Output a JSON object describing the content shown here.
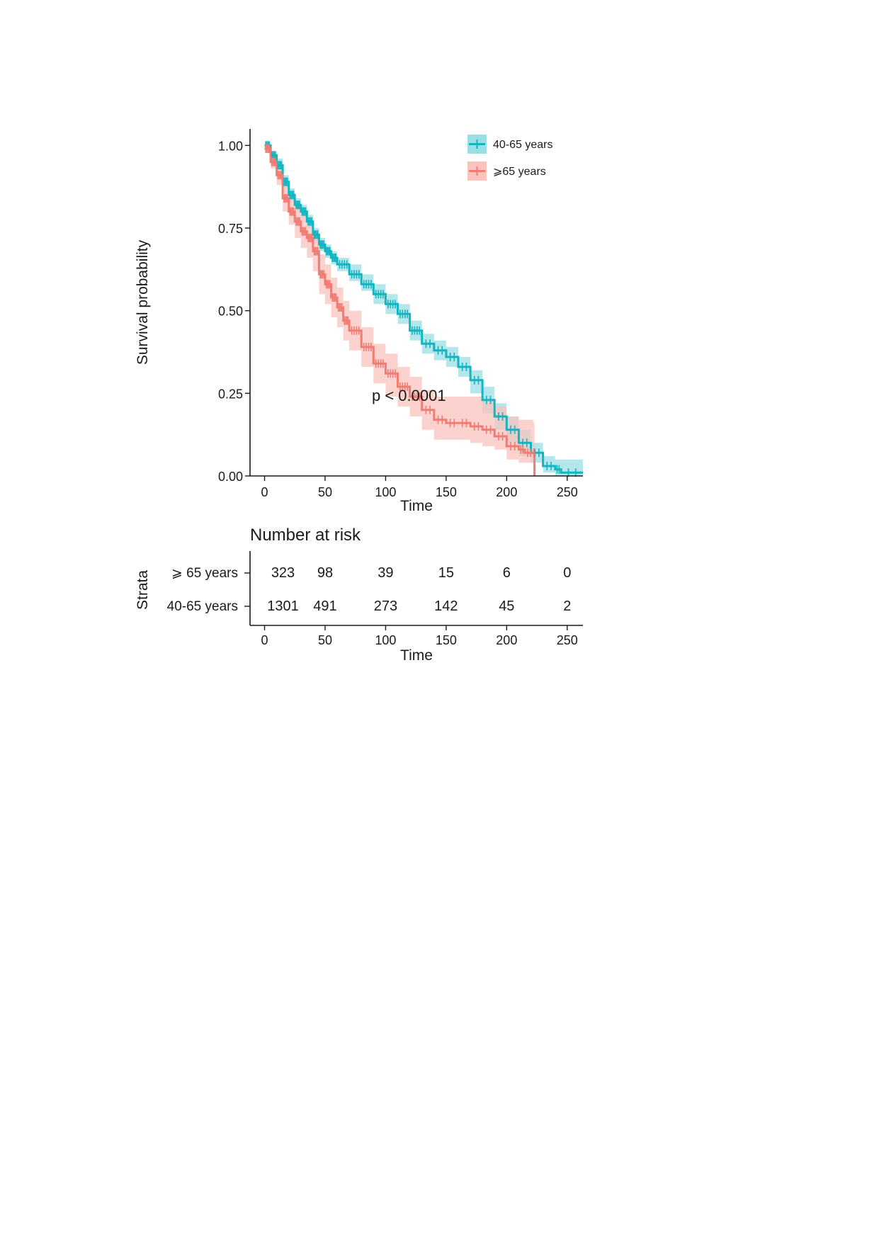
{
  "chart_data": {
    "type": "kaplan-meier",
    "xlabel": "Time",
    "ylabel": "Survival probability",
    "xlim": [
      -12,
      263
    ],
    "ylim": [
      0,
      1.05
    ],
    "x_ticks": [
      "0",
      "50",
      "100",
      "150",
      "200",
      "250"
    ],
    "x_tick_values": [
      0,
      50,
      100,
      150,
      200,
      250
    ],
    "y_ticks": [
      "0.00",
      "0.25",
      "0.50",
      "0.75",
      "1.00"
    ],
    "y_tick_values": [
      0,
      0.25,
      0.5,
      0.75,
      1.0
    ],
    "pvalue_text": "p < 0.0001",
    "legend_position": "top-right",
    "series": [
      {
        "name": "40-65 years",
        "color": "#12B5C0",
        "ci_color": "#9ADFE4",
        "points": [
          [
            0,
            1.0
          ],
          [
            5,
            0.97
          ],
          [
            10,
            0.94
          ],
          [
            15,
            0.89
          ],
          [
            20,
            0.85
          ],
          [
            25,
            0.82
          ],
          [
            30,
            0.8
          ],
          [
            35,
            0.77
          ],
          [
            40,
            0.73
          ],
          [
            45,
            0.7
          ],
          [
            50,
            0.68
          ],
          [
            55,
            0.66
          ],
          [
            60,
            0.64
          ],
          [
            70,
            0.61
          ],
          [
            80,
            0.58
          ],
          [
            90,
            0.55
          ],
          [
            100,
            0.52
          ],
          [
            110,
            0.49
          ],
          [
            120,
            0.44
          ],
          [
            130,
            0.4
          ],
          [
            140,
            0.38
          ],
          [
            150,
            0.36
          ],
          [
            160,
            0.33
          ],
          [
            170,
            0.29
          ],
          [
            180,
            0.23
          ],
          [
            190,
            0.18
          ],
          [
            200,
            0.14
          ],
          [
            210,
            0.1
          ],
          [
            220,
            0.07
          ],
          [
            230,
            0.03
          ],
          [
            240,
            0.02
          ],
          [
            245,
            0.01
          ],
          [
            263,
            0.01
          ]
        ],
        "ci_lower": [
          [
            0,
            1.0
          ],
          [
            5,
            0.96
          ],
          [
            10,
            0.93
          ],
          [
            15,
            0.87
          ],
          [
            20,
            0.83
          ],
          [
            25,
            0.8
          ],
          [
            30,
            0.78
          ],
          [
            35,
            0.75
          ],
          [
            40,
            0.71
          ],
          [
            45,
            0.68
          ],
          [
            50,
            0.66
          ],
          [
            55,
            0.64
          ],
          [
            60,
            0.62
          ],
          [
            70,
            0.59
          ],
          [
            80,
            0.56
          ],
          [
            90,
            0.52
          ],
          [
            100,
            0.49
          ],
          [
            110,
            0.46
          ],
          [
            120,
            0.41
          ],
          [
            130,
            0.37
          ],
          [
            140,
            0.35
          ],
          [
            150,
            0.33
          ],
          [
            160,
            0.3
          ],
          [
            170,
            0.25
          ],
          [
            180,
            0.19
          ],
          [
            190,
            0.14
          ],
          [
            200,
            0.1
          ],
          [
            210,
            0.06
          ],
          [
            220,
            0.04
          ],
          [
            230,
            0.01
          ],
          [
            240,
            0.0
          ],
          [
            263,
            0.0
          ]
        ],
        "ci_upper": [
          [
            0,
            1.0
          ],
          [
            5,
            0.98
          ],
          [
            10,
            0.96
          ],
          [
            15,
            0.91
          ],
          [
            20,
            0.87
          ],
          [
            25,
            0.84
          ],
          [
            30,
            0.82
          ],
          [
            35,
            0.79
          ],
          [
            40,
            0.75
          ],
          [
            45,
            0.72
          ],
          [
            50,
            0.7
          ],
          [
            55,
            0.68
          ],
          [
            60,
            0.66
          ],
          [
            70,
            0.64
          ],
          [
            80,
            0.61
          ],
          [
            90,
            0.58
          ],
          [
            100,
            0.55
          ],
          [
            110,
            0.52
          ],
          [
            120,
            0.47
          ],
          [
            130,
            0.43
          ],
          [
            140,
            0.41
          ],
          [
            150,
            0.39
          ],
          [
            160,
            0.36
          ],
          [
            170,
            0.32
          ],
          [
            180,
            0.27
          ],
          [
            190,
            0.22
          ],
          [
            200,
            0.18
          ],
          [
            210,
            0.14
          ],
          [
            220,
            0.1
          ],
          [
            230,
            0.06
          ],
          [
            240,
            0.05
          ],
          [
            263,
            0.04
          ]
        ],
        "risk_numbers": [
          "1301",
          "491",
          "273",
          "142",
          "45",
          "2"
        ]
      },
      {
        "name": "⩾65 years",
        "risk_label": "⩾ 65 years",
        "color": "#F07C73",
        "ci_color": "#F9C3BE",
        "points": [
          [
            0,
            0.99
          ],
          [
            5,
            0.95
          ],
          [
            10,
            0.91
          ],
          [
            15,
            0.84
          ],
          [
            20,
            0.8
          ],
          [
            25,
            0.77
          ],
          [
            30,
            0.74
          ],
          [
            35,
            0.72
          ],
          [
            40,
            0.68
          ],
          [
            45,
            0.61
          ],
          [
            50,
            0.58
          ],
          [
            55,
            0.54
          ],
          [
            60,
            0.51
          ],
          [
            65,
            0.47
          ],
          [
            70,
            0.44
          ],
          [
            80,
            0.39
          ],
          [
            90,
            0.34
          ],
          [
            100,
            0.31
          ],
          [
            110,
            0.27
          ],
          [
            120,
            0.24
          ],
          [
            130,
            0.2
          ],
          [
            140,
            0.17
          ],
          [
            150,
            0.16
          ],
          [
            160,
            0.16
          ],
          [
            170,
            0.15
          ],
          [
            180,
            0.14
          ],
          [
            190,
            0.12
          ],
          [
            200,
            0.09
          ],
          [
            210,
            0.08
          ],
          [
            215,
            0.07
          ],
          [
            222,
            0.07
          ],
          [
            223,
            0.0
          ]
        ],
        "ci_lower": [
          [
            0,
            0.99
          ],
          [
            5,
            0.93
          ],
          [
            10,
            0.88
          ],
          [
            15,
            0.8
          ],
          [
            20,
            0.76
          ],
          [
            25,
            0.72
          ],
          [
            30,
            0.69
          ],
          [
            35,
            0.66
          ],
          [
            40,
            0.62
          ],
          [
            45,
            0.55
          ],
          [
            50,
            0.52
          ],
          [
            55,
            0.48
          ],
          [
            60,
            0.45
          ],
          [
            65,
            0.41
          ],
          [
            70,
            0.38
          ],
          [
            80,
            0.33
          ],
          [
            90,
            0.28
          ],
          [
            100,
            0.24
          ],
          [
            110,
            0.21
          ],
          [
            120,
            0.18
          ],
          [
            130,
            0.14
          ],
          [
            140,
            0.11
          ],
          [
            150,
            0.11
          ],
          [
            160,
            0.11
          ],
          [
            170,
            0.1
          ],
          [
            180,
            0.09
          ],
          [
            190,
            0.08
          ],
          [
            200,
            0.05
          ],
          [
            210,
            0.04
          ],
          [
            222,
            0.03
          ],
          [
            223,
            0.0
          ]
        ],
        "ci_upper": [
          [
            0,
            1.0
          ],
          [
            5,
            0.97
          ],
          [
            10,
            0.94
          ],
          [
            15,
            0.88
          ],
          [
            20,
            0.84
          ],
          [
            25,
            0.82
          ],
          [
            30,
            0.79
          ],
          [
            35,
            0.78
          ],
          [
            40,
            0.74
          ],
          [
            45,
            0.67
          ],
          [
            50,
            0.64
          ],
          [
            55,
            0.6
          ],
          [
            60,
            0.57
          ],
          [
            65,
            0.53
          ],
          [
            70,
            0.5
          ],
          [
            80,
            0.45
          ],
          [
            90,
            0.4
          ],
          [
            100,
            0.37
          ],
          [
            110,
            0.33
          ],
          [
            120,
            0.3
          ],
          [
            130,
            0.26
          ],
          [
            140,
            0.24
          ],
          [
            150,
            0.24
          ],
          [
            160,
            0.24
          ],
          [
            170,
            0.24
          ],
          [
            180,
            0.23
          ],
          [
            190,
            0.21
          ],
          [
            200,
            0.18
          ],
          [
            210,
            0.17
          ],
          [
            222,
            0.16
          ],
          [
            223,
            0.0
          ]
        ],
        "risk_numbers": [
          "323",
          "98",
          "39",
          "15",
          "6",
          "0"
        ]
      }
    ],
    "risk_table": {
      "title": "Number at risk",
      "ylabel": "Strata",
      "xlabel": "Time",
      "x_ticks": [
        "0",
        "50",
        "100",
        "150",
        "200",
        "250"
      ]
    }
  }
}
